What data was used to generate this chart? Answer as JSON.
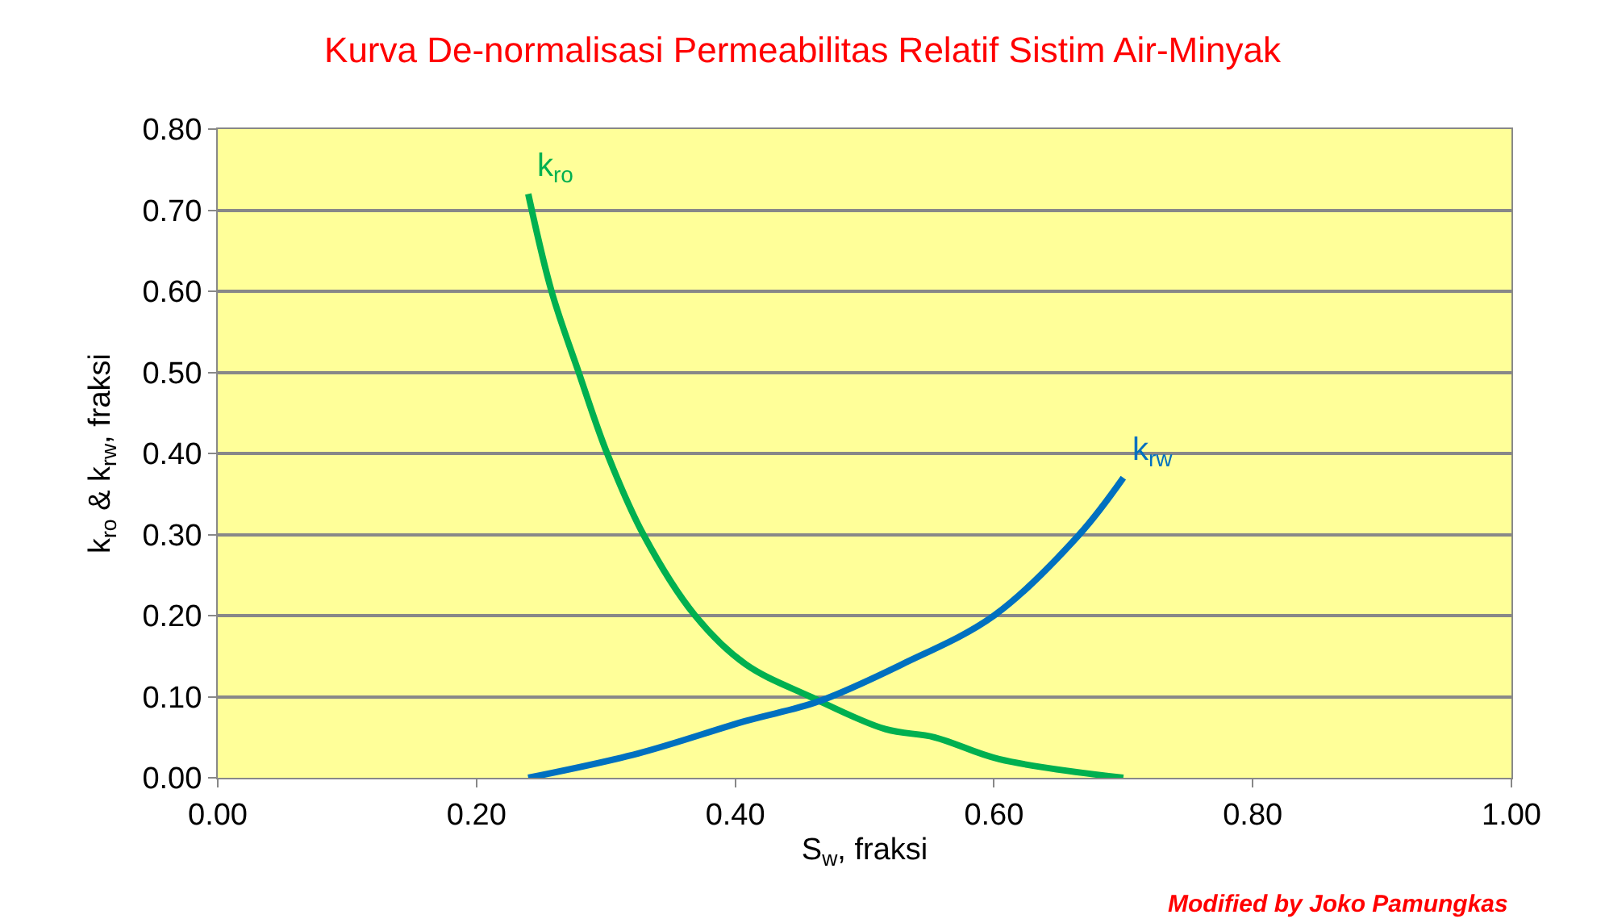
{
  "chart_data": {
    "type": "line",
    "title": "Kurva De-normalisasi Permeabilitas Relatif Sistim Air-Minyak",
    "xlabel": "S$_{w}$, fraksi",
    "ylabel": "k$_{ro}$ & k$_{rw}$, fraksi",
    "series": [
      {
        "name": "k$_{ro}$",
        "color": "#00b050",
        "x": [
          0.24,
          0.258,
          0.279,
          0.301,
          0.329,
          0.369,
          0.408,
          0.458,
          0.516,
          0.554,
          0.604,
          0.7
        ],
        "values": [
          0.72,
          0.6,
          0.5,
          0.4,
          0.3,
          0.2,
          0.14,
          0.1,
          0.06,
          0.05,
          0.023,
          0.0
        ]
      },
      {
        "name": "k$_{rw}$",
        "color": "#0070c0",
        "x": [
          0.24,
          0.325,
          0.408,
          0.464,
          0.529,
          0.6,
          0.666,
          0.7
        ],
        "values": [
          0.0,
          0.03,
          0.07,
          0.094,
          0.14,
          0.2,
          0.3,
          0.37
        ]
      }
    ],
    "xlim": [
      0,
      1
    ],
    "xticks": [
      {
        "value": 0,
        "label": "0.00"
      },
      {
        "value": 0.2,
        "label": "0.20"
      },
      {
        "value": 0.4,
        "label": "0.40"
      },
      {
        "value": 0.6,
        "label": "0.60"
      },
      {
        "value": 0.8,
        "label": "0.80"
      },
      {
        "value": 1,
        "label": "1.00"
      }
    ],
    "ylim": [
      0,
      0.8
    ],
    "yticks": [
      {
        "value": 0,
        "label": "0.00"
      },
      {
        "value": 0.1,
        "label": "0.10"
      },
      {
        "value": 0.2,
        "label": "0.20"
      },
      {
        "value": 0.3,
        "label": "0.30"
      },
      {
        "value": 0.4,
        "label": "0.40"
      },
      {
        "value": 0.5,
        "label": "0.50"
      },
      {
        "value": 0.6,
        "label": "0.60"
      },
      {
        "value": 0.7,
        "label": "0.70"
      },
      {
        "value": 0.8,
        "label": "0.80"
      }
    ],
    "grid": "y",
    "legend": false,
    "marker": "none",
    "line_style": "solid",
    "annotations": [
      "Modified by Joko Pamungkas"
    ]
  }
}
